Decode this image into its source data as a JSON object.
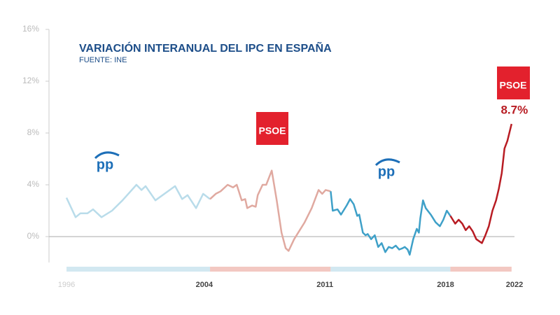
{
  "chart_data": {
    "type": "line",
    "title": "VARIACIÓN INTERANUAL DEL IPC EN ESPAÑA",
    "subtitle": "FUENTE: INE",
    "logos": [
      "pp",
      "PSOE",
      "pp",
      "PSOE"
    ],
    "xlim": [
      1996,
      2022
    ],
    "xticks": [
      1996,
      2004,
      2011,
      2018,
      2022
    ],
    "ylim": [
      -2,
      16
    ],
    "yticks": [
      {
        "value": 0,
        "label": "0%"
      },
      {
        "value": 4,
        "label": "4%"
      },
      {
        "value": 8,
        "label": "8%"
      },
      {
        "value": 12,
        "label": "12%"
      },
      {
        "value": 16,
        "label": "16%"
      }
    ],
    "series": [
      {
        "color": "#b9dcea",
        "band_color": "#d2e8f1",
        "x": [
          1996.0,
          1996.53,
          1996.81,
          1997.22,
          1997.54,
          1998.03,
          1998.64,
          1999.25,
          2000.06,
          2000.35,
          2000.59,
          2001.16,
          2002.3,
          2002.71,
          2003.03,
          2003.52,
          2003.93,
          2004.33
        ],
        "values": [
          3.0,
          1.5,
          1.8,
          1.8,
          2.1,
          1.5,
          2.0,
          2.8,
          4.0,
          3.6,
          3.9,
          2.8,
          3.9,
          2.9,
          3.2,
          2.2,
          3.3,
          2.9
        ]
      },
      {
        "color": "#e0a9a0",
        "band_color": "#f3c8c2",
        "x": [
          2004.33,
          2004.66,
          2004.94,
          2005.35,
          2005.67,
          2005.88,
          2006.17,
          2006.37,
          2006.49,
          2006.77,
          2006.98,
          2007.1,
          2007.38,
          2007.59,
          2007.91,
          2008.2,
          2008.48,
          2008.72,
          2008.89,
          2009.21,
          2009.82,
          2010.23,
          2010.63,
          2010.84,
          2011.04,
          2011.33
        ],
        "values": [
          2.9,
          3.3,
          3.5,
          4.0,
          3.8,
          4.0,
          2.8,
          2.9,
          2.2,
          2.4,
          2.3,
          3.2,
          4.0,
          4.0,
          5.1,
          2.8,
          0.3,
          -0.9,
          -1.1,
          -0.2,
          1.1,
          2.2,
          3.6,
          3.3,
          3.6,
          3.5
        ]
      },
      {
        "color": "#3ea0c8",
        "band_color": "#d2e8f1",
        "x": [
          2011.33,
          2011.45,
          2011.73,
          2011.93,
          2012.26,
          2012.46,
          2012.67,
          2012.87,
          2012.99,
          2013.2,
          2013.36,
          2013.48,
          2013.68,
          2013.89,
          2014.09,
          2014.29,
          2014.5,
          2014.7,
          2014.9,
          2015.11,
          2015.31,
          2015.51,
          2015.63,
          2015.8,
          2015.92,
          2016.12,
          2016.33,
          2016.45,
          2016.53,
          2016.69,
          2016.85,
          2017.14,
          2017.42,
          2017.67,
          2017.87,
          2018.07,
          2018.28
        ],
        "values": [
          3.5,
          2.0,
          2.1,
          1.7,
          2.4,
          2.9,
          2.5,
          1.6,
          1.7,
          0.3,
          0.1,
          0.2,
          -0.2,
          0.1,
          -0.8,
          -0.5,
          -1.2,
          -0.8,
          -0.9,
          -0.7,
          -1.0,
          -0.9,
          -0.8,
          -1.0,
          -1.4,
          -0.2,
          0.6,
          0.3,
          1.4,
          2.8,
          2.2,
          1.7,
          1.1,
          0.8,
          1.3,
          2.0,
          1.6
        ]
      },
      {
        "color": "#b81c23",
        "band_color": "#f3c8c2",
        "x": [
          2018.28,
          2018.56,
          2018.76,
          2018.97,
          2019.17,
          2019.37,
          2019.58,
          2019.78,
          2020.11,
          2020.31,
          2020.51,
          2020.72,
          2020.93,
          2021.09,
          2021.26,
          2021.42,
          2021.59,
          2021.83
        ],
        "values": [
          1.6,
          1.0,
          1.3,
          1.0,
          0.5,
          0.8,
          0.4,
          -0.2,
          -0.5,
          0.1,
          0.8,
          2.0,
          2.8,
          3.7,
          4.9,
          6.8,
          7.4,
          8.7
        ],
        "value_labels": [
          null,
          null,
          null,
          null,
          null,
          null,
          null,
          null,
          null,
          null,
          null,
          null,
          null,
          null,
          null,
          null,
          null,
          "8.7%"
        ]
      }
    ]
  }
}
